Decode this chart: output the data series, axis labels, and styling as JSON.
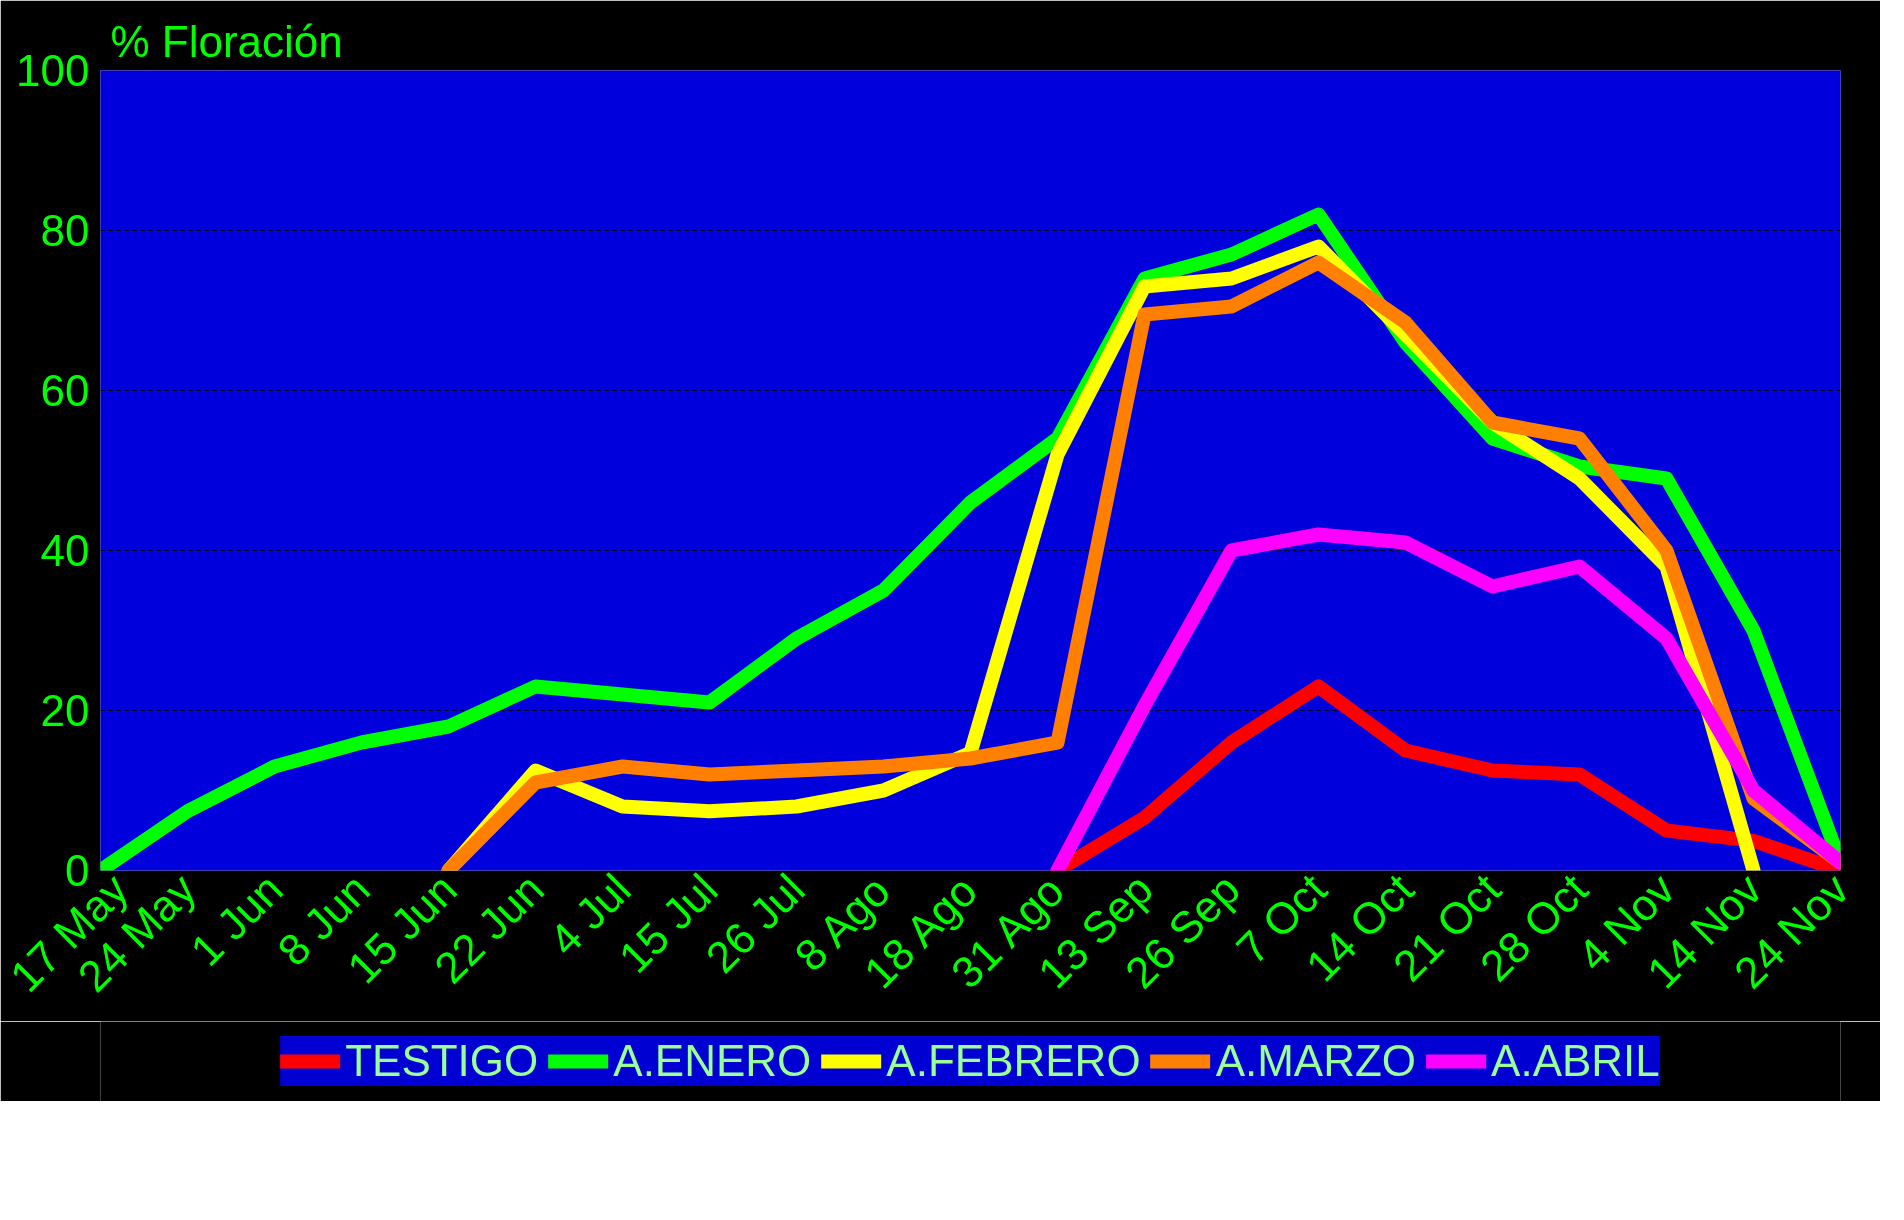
{
  "chart_data": {
    "type": "line",
    "title": "% Floración",
    "categories": [
      "17 May",
      "24 May",
      "1 Jun",
      "8 Jun",
      "15 Jun",
      "22 Jun",
      "4 Jul",
      "15 Jul",
      "26 Jul",
      "8 Ago",
      "18 Ago",
      "31 Ago",
      "13 Sep",
      "26 Sep",
      "7 Oct",
      "14 Oct",
      "21 Oct",
      "28 Oct",
      "4 Nov",
      "14 Nov",
      "24 Nov"
    ],
    "series": [
      {
        "name": "TESTIGO",
        "color": "#ff0000",
        "values": [
          null,
          null,
          null,
          null,
          null,
          null,
          null,
          null,
          null,
          null,
          null,
          0,
          6.6,
          16,
          23,
          15,
          12.5,
          12,
          5,
          3.7,
          0
        ]
      },
      {
        "name": "A.ENERO",
        "color": "#00ff00",
        "values": [
          0,
          7.4,
          13,
          16,
          18,
          23,
          22,
          21,
          29,
          35,
          46,
          54,
          74,
          77,
          82,
          66,
          54,
          50.5,
          49,
          30,
          1
        ]
      },
      {
        "name": "A.FEBRERO",
        "color": "#ffff00",
        "values": [
          null,
          null,
          null,
          null,
          0,
          12.5,
          8,
          7.4,
          8,
          10,
          14.7,
          52,
          73,
          74,
          78,
          67,
          56,
          49,
          38,
          0,
          null
        ]
      },
      {
        "name": "A.MARZO",
        "color": "#ff8000",
        "values": [
          null,
          null,
          null,
          null,
          0,
          11,
          13,
          12,
          12.5,
          13,
          14,
          16,
          69.5,
          70.5,
          76,
          68.5,
          56,
          54,
          40,
          9,
          1
        ]
      },
      {
        "name": "A.ABRIL",
        "color": "#ff00ff",
        "values": [
          null,
          null,
          null,
          null,
          null,
          null,
          null,
          null,
          null,
          null,
          null,
          0,
          20.6,
          40,
          42,
          41,
          35.5,
          38,
          29,
          10,
          1
        ]
      }
    ],
    "ylim": [
      0,
      100
    ],
    "yticks": [
      0,
      20,
      40,
      60,
      80,
      100
    ],
    "grid": "y",
    "legend": "bottom",
    "line_style": "solid"
  }
}
